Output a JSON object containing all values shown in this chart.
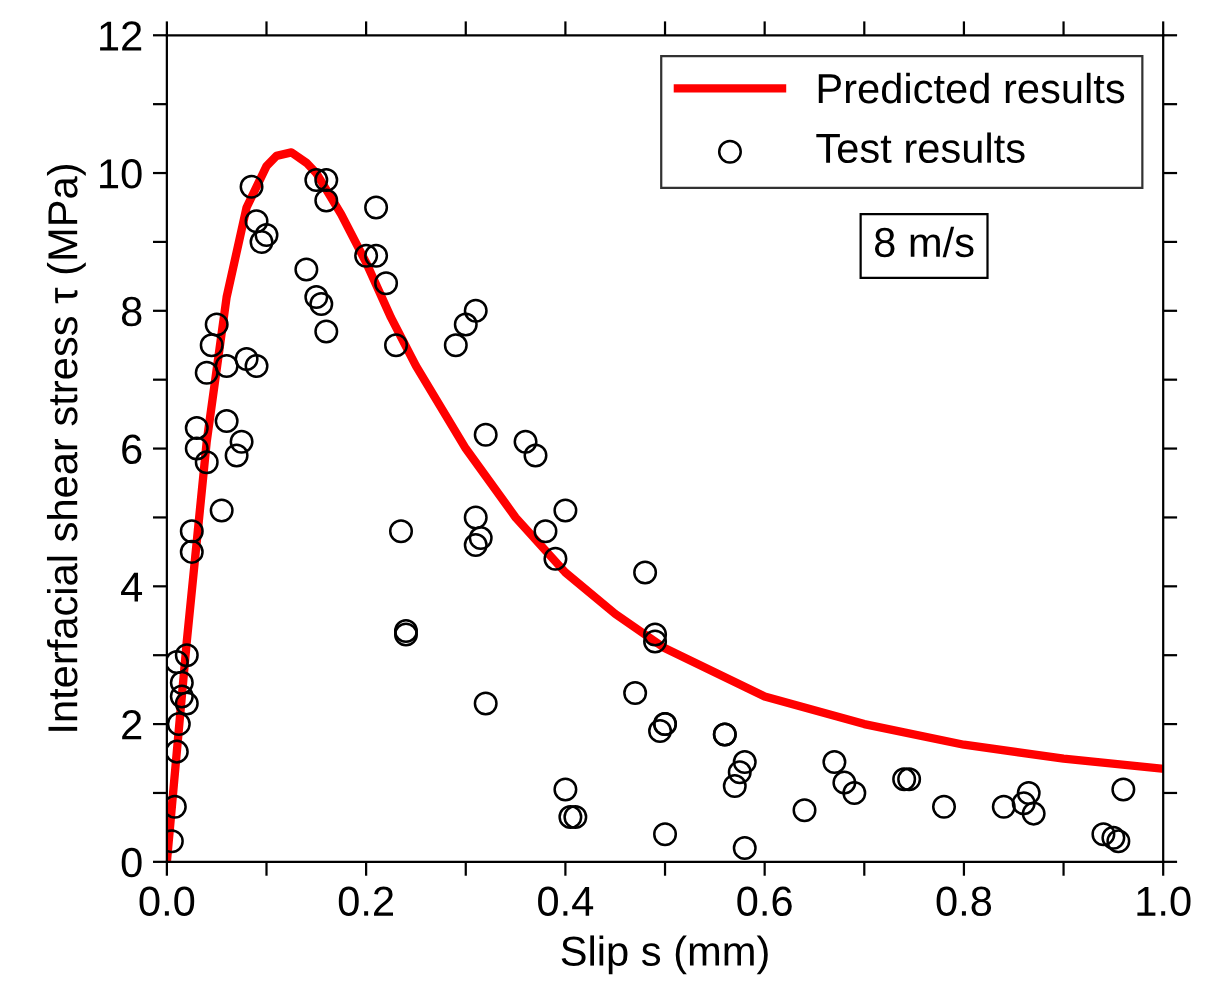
{
  "chart_data": {
    "type": "scatter",
    "xlabel": "Slip s (mm)",
    "ylabel": "Interfacial shear stress τ (MPa)",
    "xlim": [
      0,
      1
    ],
    "ylim": [
      0,
      12
    ],
    "xticks": [
      {
        "value": 0,
        "label": "0.0"
      },
      {
        "value": 0.1,
        "label": null
      },
      {
        "value": 0.2,
        "label": "0.2"
      },
      {
        "value": 0.3,
        "label": null
      },
      {
        "value": 0.4,
        "label": "0.4"
      },
      {
        "value": 0.5,
        "label": null
      },
      {
        "value": 0.6,
        "label": "0.6"
      },
      {
        "value": 0.7,
        "label": null
      },
      {
        "value": 0.8,
        "label": "0.8"
      },
      {
        "value": 0.9,
        "label": null
      },
      {
        "value": 1,
        "label": "1.0"
      }
    ],
    "yticks": [
      0,
      {
        "value": 1,
        "label": null
      },
      2,
      {
        "value": 3,
        "label": null
      },
      4,
      {
        "value": 5,
        "label": null
      },
      6,
      {
        "value": 7,
        "label": null
      },
      8,
      {
        "value": 9,
        "label": null
      },
      10,
      {
        "value": 11,
        "label": null
      },
      12
    ],
    "grid": false,
    "legend": "top right",
    "annotations": [
      "8 m/s"
    ],
    "series": [
      {
        "name": "Predicted results",
        "type": "line",
        "color": "#ff0000",
        "marker": "none",
        "line_style": "solid",
        "x": [
          0,
          0.01,
          0.02,
          0.04,
          0.06,
          0.08,
          0.1,
          0.11,
          0.125,
          0.14,
          0.15,
          0.175,
          0.2,
          0.225,
          0.25,
          0.3,
          0.35,
          0.4,
          0.45,
          0.5,
          0.6,
          0.7,
          0.8,
          0.9,
          1.0
        ],
        "values": [
          0,
          1.6,
          3.2,
          6.1,
          8.2,
          9.5,
          10.1,
          10.25,
          10.3,
          10.15,
          10.0,
          9.4,
          8.7,
          7.9,
          7.2,
          6.0,
          5.0,
          4.2,
          3.6,
          3.1,
          2.4,
          2.0,
          1.7,
          1.5,
          1.35
        ]
      },
      {
        "name": "Test results",
        "color": "#000000",
        "marker": "circle",
        "x": [
          0.005,
          0.008,
          0.01,
          0.012,
          0.015,
          0.02,
          0.01,
          0.02,
          0.015,
          0.025,
          0.025,
          0.03,
          0.03,
          0.04,
          0.04,
          0.045,
          0.05,
          0.055,
          0.06,
          0.06,
          0.07,
          0.075,
          0.08,
          0.085,
          0.09,
          0.09,
          0.095,
          0.1,
          0.14,
          0.15,
          0.15,
          0.155,
          0.16,
          0.16,
          0.16,
          0.2,
          0.21,
          0.21,
          0.22,
          0.23,
          0.235,
          0.24,
          0.24,
          0.29,
          0.3,
          0.31,
          0.31,
          0.31,
          0.315,
          0.32,
          0.32,
          0.36,
          0.37,
          0.38,
          0.39,
          0.4,
          0.4,
          0.405,
          0.41,
          0.47,
          0.48,
          0.49,
          0.49,
          0.495,
          0.5,
          0.5,
          0.5,
          0.56,
          0.56,
          0.57,
          0.575,
          0.58,
          0.58,
          0.64,
          0.67,
          0.68,
          0.69,
          0.74,
          0.745,
          0.78,
          0.84,
          0.86,
          0.865,
          0.87,
          0.94,
          0.95,
          0.955,
          0.96
        ],
        "values": [
          0.3,
          0.8,
          1.6,
          2.0,
          2.4,
          2.3,
          2.9,
          3.0,
          2.6,
          4.5,
          4.8,
          6.0,
          6.3,
          5.8,
          7.1,
          7.5,
          7.8,
          5.1,
          6.4,
          7.2,
          5.9,
          6.1,
          7.3,
          9.8,
          7.2,
          9.3,
          9.0,
          9.1,
          8.6,
          9.9,
          8.2,
          8.1,
          9.6,
          7.7,
          9.9,
          8.8,
          8.8,
          9.5,
          8.4,
          7.5,
          4.8,
          3.3,
          3.35,
          7.5,
          7.8,
          8.0,
          5.0,
          4.6,
          4.7,
          6.2,
          2.3,
          6.1,
          5.9,
          4.8,
          4.4,
          5.1,
          1.05,
          0.65,
          0.65,
          2.45,
          4.2,
          3.3,
          3.2,
          1.9,
          2.0,
          2.0,
          0.4,
          1.85,
          1.85,
          1.1,
          1.3,
          1.45,
          0.2,
          0.75,
          1.45,
          1.15,
          1.0,
          1.2,
          1.2,
          0.8,
          0.8,
          0.85,
          1.0,
          0.7,
          0.4,
          0.35,
          0.3,
          1.05
        ]
      }
    ]
  }
}
